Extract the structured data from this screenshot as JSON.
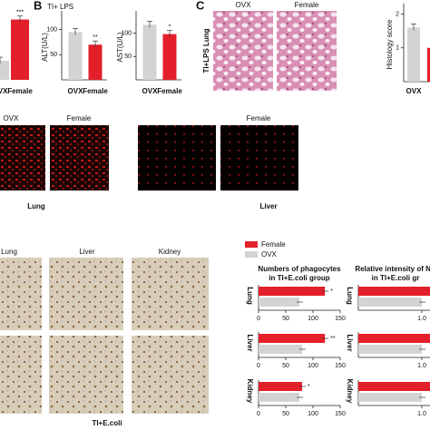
{
  "figure": {
    "panel_labels": [
      "B",
      "C"
    ],
    "b_condition": "TI+ LPS",
    "c_columns": [
      "OVX",
      "Female"
    ],
    "c_row": "TI+LPS Lung",
    "if_columns": [
      "OVX",
      "Female",
      "Female"
    ],
    "if_tissues": [
      "Lung",
      "Liver"
    ],
    "ihc_columns": [
      "Lung",
      "Liver",
      "Kidney"
    ],
    "ihc_condition": "TI+E.coli"
  },
  "chart_data": [
    {
      "type": "bar",
      "categories": [
        "OVX",
        "Female"
      ],
      "values": [
        30,
        95
      ],
      "colors": [
        "#d3d3d3",
        "#e3202a"
      ],
      "ylim": [
        0,
        100
      ],
      "significance": [
        null,
        "***"
      ]
    },
    {
      "type": "bar",
      "y_label": "ALT(U/L)",
      "categories": [
        "OVX",
        "Female"
      ],
      "values": [
        95,
        70
      ],
      "colors": [
        "#d3d3d3",
        "#e3202a"
      ],
      "ylim": [
        0,
        130
      ],
      "yticks": [
        50,
        100
      ],
      "significance": [
        null,
        "**"
      ]
    },
    {
      "type": "bar",
      "y_label": "AST(U/L)",
      "categories": [
        "OVX",
        "Female"
      ],
      "values": [
        118,
        98
      ],
      "colors": [
        "#d3d3d3",
        "#e3202a"
      ],
      "ylim": [
        0,
        140
      ],
      "yticks": [
        50,
        100
      ],
      "significance": [
        null,
        "*"
      ]
    },
    {
      "type": "bar",
      "y_label": "Histology score",
      "categories": [
        "OVX",
        null
      ],
      "values": [
        1.6,
        1.0
      ],
      "colors": [
        "#d3d3d3",
        "#e3202a"
      ],
      "ylim": [
        0,
        2.2
      ],
      "yticks": [
        1,
        2
      ]
    },
    {
      "type": "bar",
      "orientation": "horizontal",
      "title": [
        "Numbers of phagocytes",
        "in TI+E.coli group"
      ],
      "categories": [
        "Lung",
        "Liver",
        "Kidney"
      ],
      "series": [
        {
          "name": "Female",
          "color": "#e3202a",
          "values": [
            122,
            122,
            80
          ],
          "significance": [
            "*",
            "**",
            "*"
          ]
        },
        {
          "name": "OVX",
          "color": "#d3d3d3",
          "values": [
            75,
            80,
            75
          ]
        }
      ],
      "xlim": [
        0,
        150
      ],
      "xticks": [
        0,
        50,
        100,
        150
      ],
      "legend": "top-left"
    },
    {
      "type": "bar",
      "orientation": "horizontal",
      "title": [
        "Relative intensity of NC",
        "in TI+E.coli gr"
      ],
      "categories": [
        "Lung",
        "Liver",
        "Kidney"
      ],
      "series": [
        {
          "name": "Female",
          "color": "#e3202a",
          "values": [
            1.3,
            1.3,
            1.3
          ]
        },
        {
          "name": "OVX",
          "color": "#d3d3d3",
          "values": [
            1.0,
            1.0,
            1.0
          ]
        }
      ],
      "xlim": [
        0,
        1.2
      ],
      "xticks": [
        {
          "value": 1,
          "label": "1.0"
        }
      ]
    }
  ]
}
